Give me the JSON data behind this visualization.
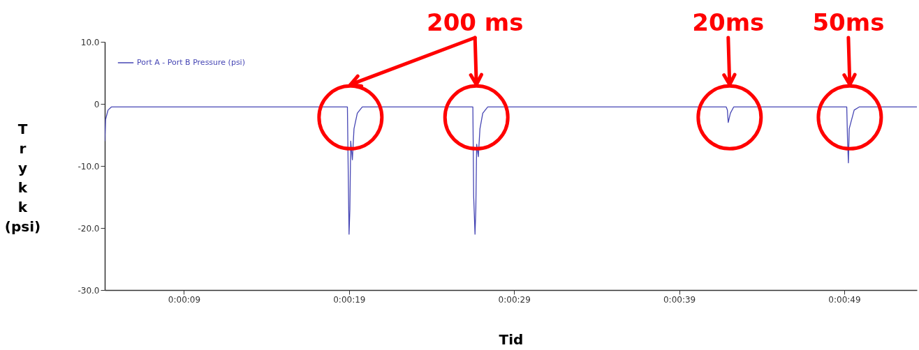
{
  "chart_data": {
    "type": "line",
    "xlabel": "Tid",
    "ylabel": "Trykk (psi)",
    "xlim": [
      4.2,
      53.4
    ],
    "ylim": [
      -30,
      10
    ],
    "xticks": [
      {
        "value": 9,
        "label": "0:00:09"
      },
      {
        "value": 19,
        "label": "0:00:19"
      },
      {
        "value": 29,
        "label": "0:00:29"
      },
      {
        "value": 39,
        "label": "0:00:39"
      },
      {
        "value": 49,
        "label": "0:00:49"
      }
    ],
    "yticks": [
      {
        "value": -30,
        "label": "-30.0"
      },
      {
        "value": -20,
        "label": "-20.0"
      },
      {
        "value": -10,
        "label": "-10.0"
      },
      0,
      {
        "value": 10,
        "label": "10.0"
      }
    ],
    "legend": "top left",
    "grid": false,
    "line_style": "solid",
    "marker": "none",
    "series": [
      {
        "name": "Port A - Port B Pressure (psi)",
        "color": "#4646b4",
        "x": [
          4.2,
          4.25,
          4.4,
          4.6,
          5,
          8,
          9,
          10,
          14,
          18.6,
          18.9,
          18.95,
          19.0,
          19.05,
          19.1,
          19.2,
          19.3,
          19.5,
          19.8,
          20.0,
          23,
          26.3,
          26.5,
          26.55,
          26.63,
          26.68,
          26.73,
          26.83,
          26.93,
          27.1,
          27.4,
          30,
          35,
          40,
          41.85,
          41.92,
          41.97,
          42.1,
          42.3,
          42.5,
          45,
          48.9,
          49.15,
          49.2,
          49.25,
          49.3,
          49.4,
          49.6,
          49.9,
          53.4
        ],
        "values": [
          -6,
          -2.5,
          -1.0,
          -0.5,
          -0.5,
          -0.5,
          -0.5,
          -0.5,
          -0.5,
          -0.5,
          -0.5,
          -11,
          -21,
          -17,
          -6,
          -9,
          -4,
          -1.5,
          -0.5,
          -0.5,
          -0.5,
          -0.5,
          -0.5,
          -15,
          -21,
          -17,
          -6.5,
          -8.5,
          -4,
          -1.5,
          -0.5,
          -0.5,
          -0.5,
          -0.5,
          -0.5,
          -1,
          -3,
          -1.5,
          -0.5,
          -0.5,
          -0.5,
          -0.5,
          -0.5,
          -6,
          -9.5,
          -4,
          -3,
          -1,
          -0.5,
          -0.5
        ]
      }
    ],
    "annotations": [
      "200 ms",
      "20ms",
      "50ms"
    ]
  }
}
